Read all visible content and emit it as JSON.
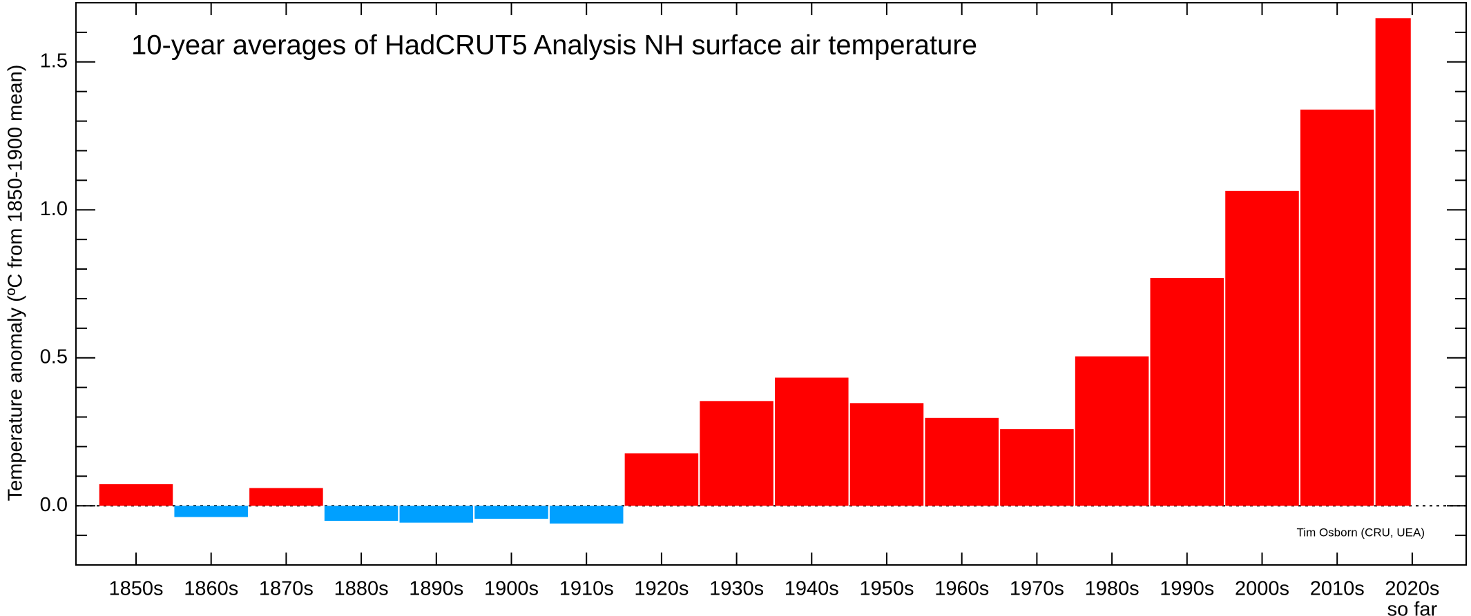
{
  "chart_data": {
    "type": "bar",
    "title": "10-year averages of HadCRUT5 Analysis NH surface air temperature",
    "ylabel": "Temperature anomaly (ºC from 1850-1900 mean)",
    "credit": "Tim Osborn (CRU, UEA)",
    "categories": [
      "1850s",
      "1860s",
      "1870s",
      "1880s",
      "1890s",
      "1900s",
      "1910s",
      "1920s",
      "1930s",
      "1940s",
      "1950s",
      "1960s",
      "1970s",
      "1980s",
      "1990s",
      "2000s",
      "2010s",
      "2020s"
    ],
    "category_note": "so far",
    "values": [
      0.073,
      -0.038,
      0.06,
      -0.051,
      -0.057,
      -0.044,
      -0.06,
      0.177,
      0.354,
      0.433,
      0.347,
      0.297,
      0.259,
      0.505,
      0.77,
      1.064,
      1.339,
      1.648
    ],
    "positive_color": "#ff0000",
    "negative_color": "#00a0ff",
    "ylim": [
      -0.2,
      1.7
    ],
    "yticks": [
      {
        "value": 0,
        "label": "0.0"
      },
      0.5,
      {
        "value": 1,
        "label": "1.0"
      },
      1.5
    ],
    "yminor": [
      -0.1,
      0.1,
      0.2,
      0.3,
      0.4,
      0.6,
      0.7,
      0.8,
      0.9,
      1.1,
      1.2,
      1.3,
      1.4,
      1.6
    ]
  }
}
